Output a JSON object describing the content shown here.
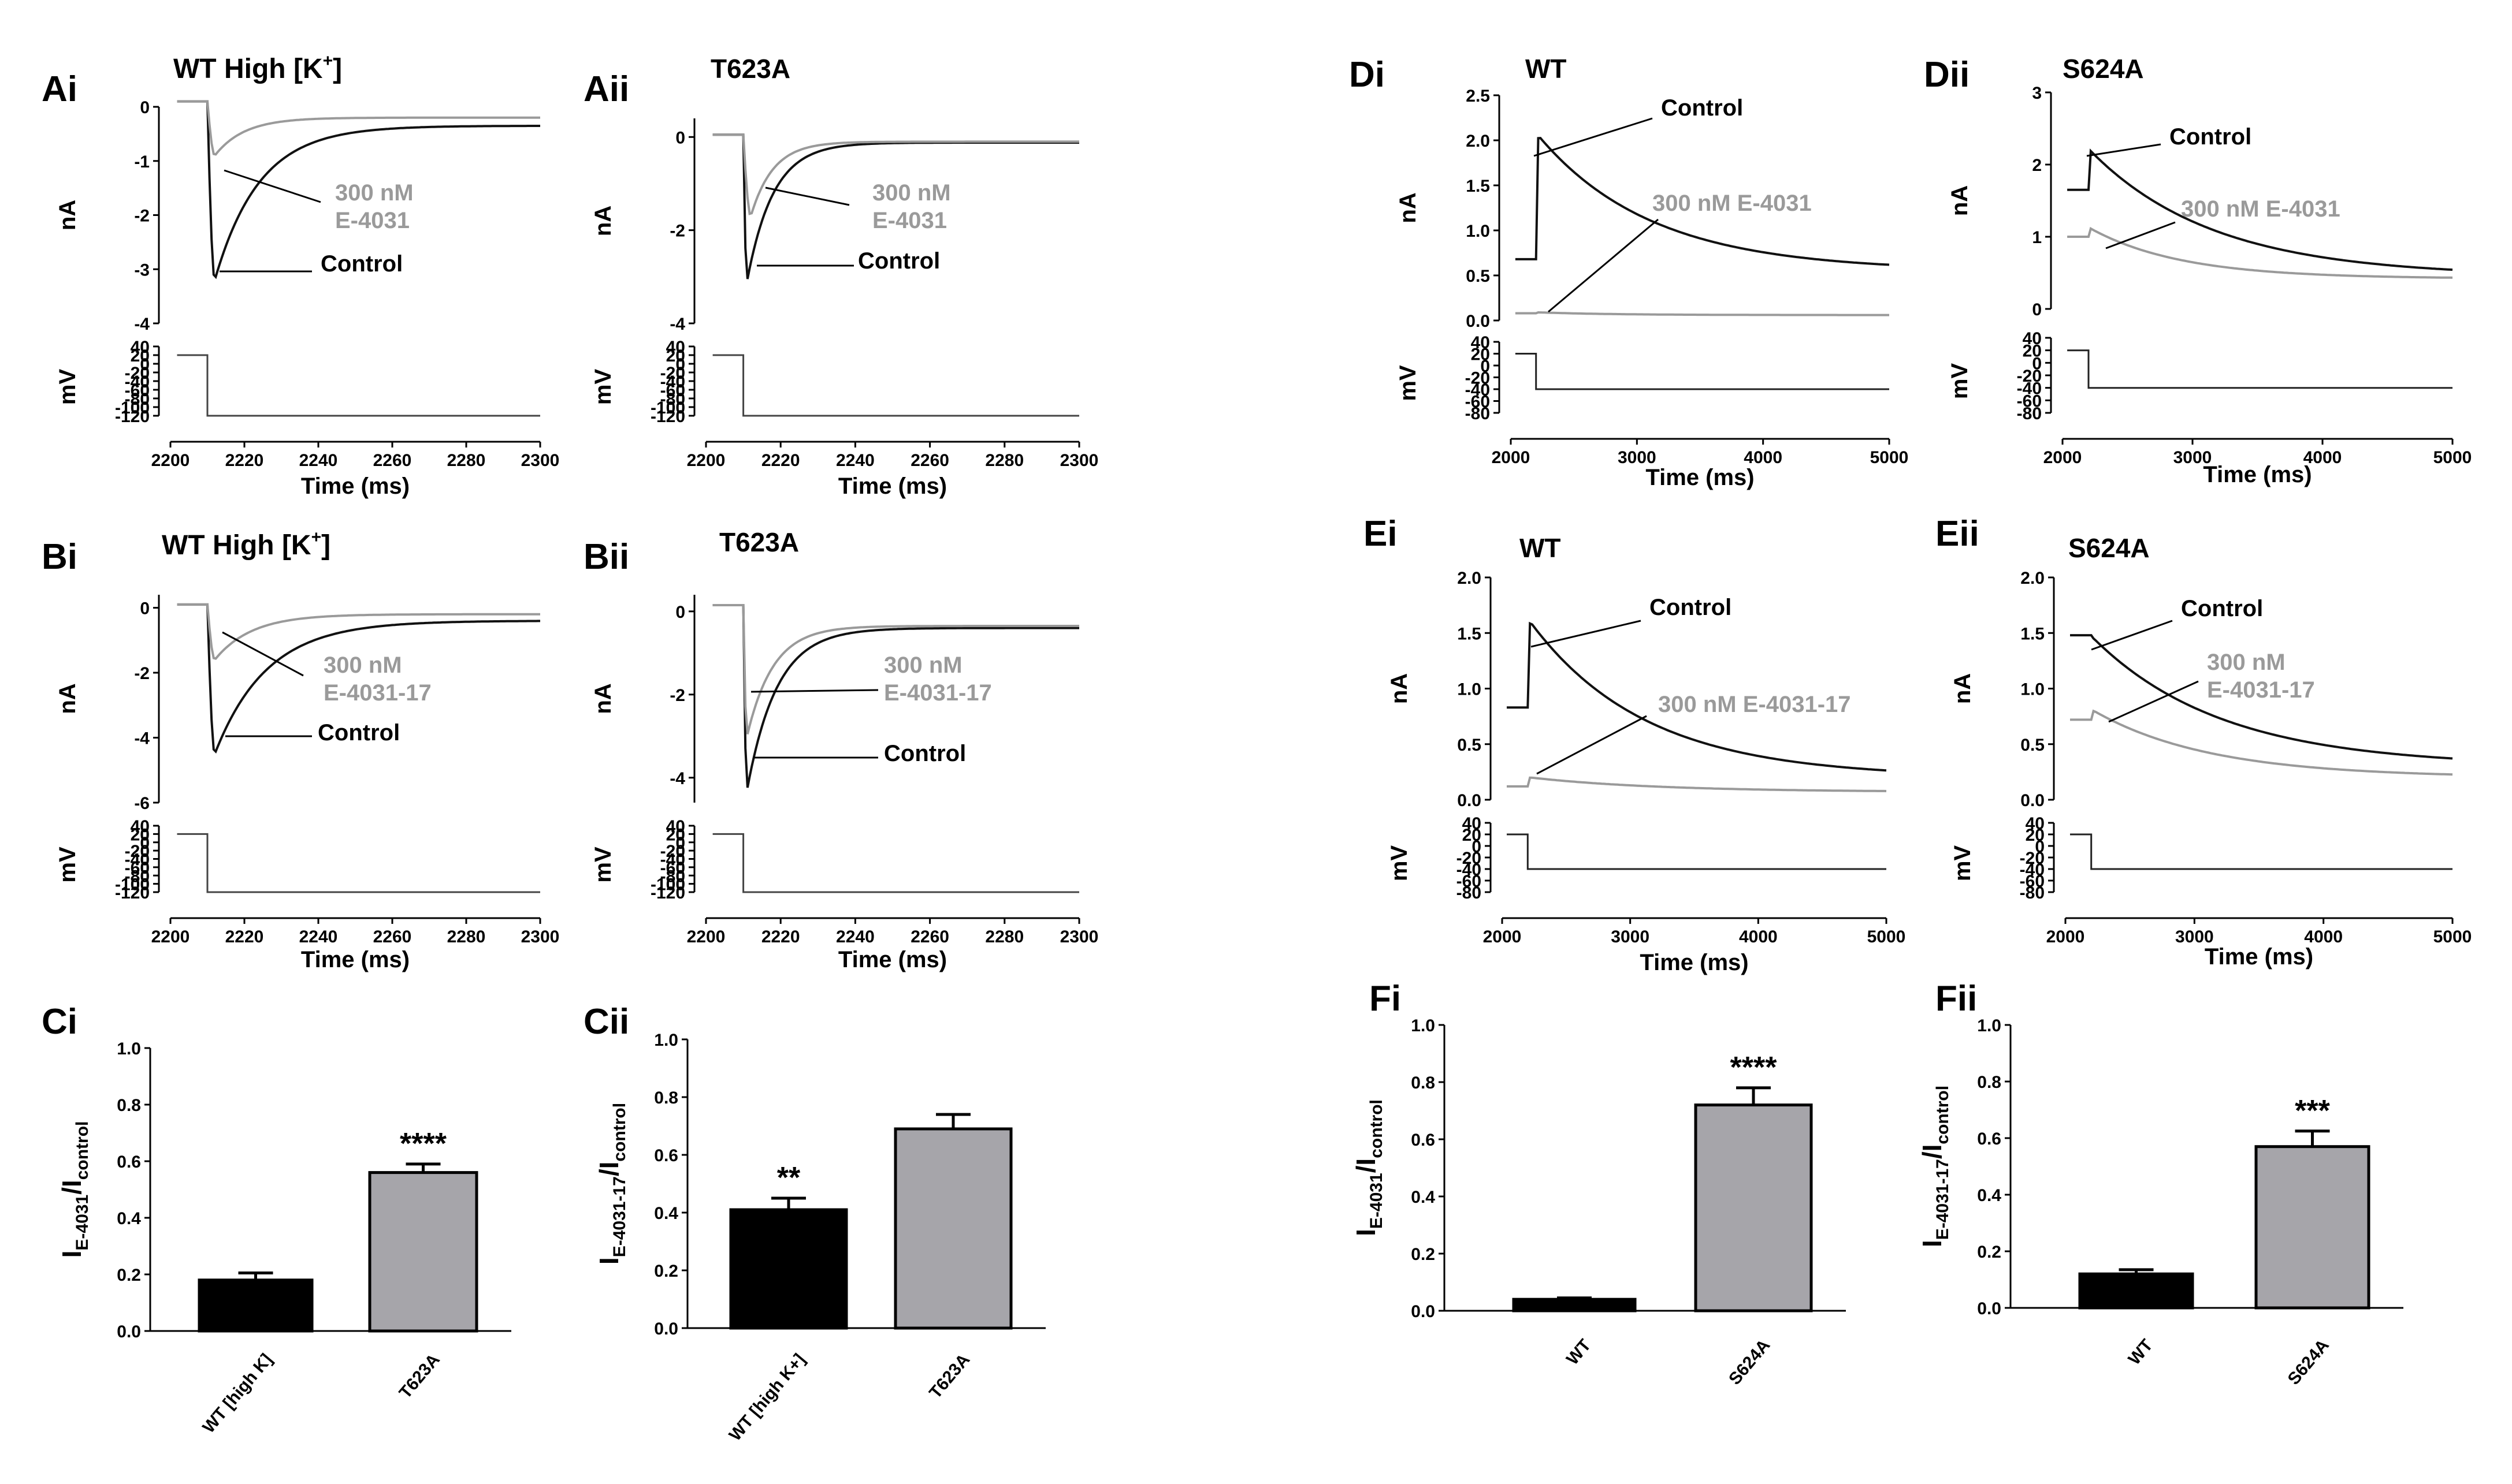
{
  "colors": {
    "control": "#111111",
    "drug": "#9a9a9a",
    "bar_wt": "#000000",
    "bar_mut": "#a6a5aa",
    "axis": "#000000"
  },
  "panels": {
    "Ai": {
      "label": "Ai",
      "title": "WT High [K",
      "title_sup": "+",
      "title_end": "]"
    },
    "Aii": {
      "label": "Aii",
      "title": "T623A"
    },
    "Bi": {
      "label": "Bi",
      "title": "WT High [K",
      "title_sup": "+",
      "title_end": "]"
    },
    "Bii": {
      "label": "Bii",
      "title": "T623A"
    },
    "Ci": {
      "label": "Ci"
    },
    "Cii": {
      "label": "Cii"
    },
    "Di": {
      "label": "Di",
      "title": "WT"
    },
    "Dii": {
      "label": "Dii",
      "title": "S624A"
    },
    "Ei": {
      "label": "Ei",
      "title": "WT"
    },
    "Eii": {
      "label": "Eii",
      "title": "S624A"
    },
    "Fi": {
      "label": "Fi"
    },
    "Fii": {
      "label": "Fii"
    }
  },
  "axis_labels": {
    "current": "nA",
    "voltage": "mV",
    "time": "Time (ms)"
  },
  "chart_data": [
    {
      "id": "Ai",
      "type": "line",
      "title": "WT High [K+]",
      "xlabel": "Time (ms)",
      "ylabel": "nA",
      "xlim": [
        2200,
        2300
      ],
      "xticks": [
        2200,
        2220,
        2240,
        2260,
        2280,
        2300
      ],
      "ylim": [
        -4,
        0
      ],
      "yticks": [
        0,
        -1,
        -2,
        -3,
        -4
      ],
      "series": [
        {
          "name": "Control",
          "hold": 0.1,
          "peak": -3.2,
          "tpeak": 2212,
          "tau": 12,
          "ss": -0.35
        },
        {
          "name": "300 nM E-4031",
          "hold": 0.1,
          "peak": -0.9,
          "tpeak": 2212,
          "tau": 8,
          "ss": -0.2
        }
      ],
      "annotations": {
        "control": "Control",
        "drug": [
          "300 nM",
          "E-4031"
        ]
      },
      "voltage": {
        "ylim": [
          -120,
          40
        ],
        "yticks": [
          40,
          20,
          0,
          -20,
          -40,
          -60,
          -80,
          -100,
          -120
        ],
        "hold": 20,
        "step": -120,
        "tstep": 2210
      }
    },
    {
      "id": "Aii",
      "type": "line",
      "title": "T623A",
      "xlabel": "Time (ms)",
      "ylabel": "nA",
      "xlim": [
        2200,
        2300
      ],
      "xticks": [
        2200,
        2220,
        2240,
        2260,
        2280,
        2300
      ],
      "ylim": [
        -4,
        0.4
      ],
      "yticks": [
        0,
        -2,
        -4
      ],
      "series": [
        {
          "name": "Control",
          "hold": 0.05,
          "peak": -3.1,
          "tpeak": 2211,
          "tau": 7,
          "ss": -0.12
        },
        {
          "name": "300 nM E-4031",
          "hold": 0.05,
          "peak": -1.7,
          "tpeak": 2212,
          "tau": 6,
          "ss": -0.1
        }
      ],
      "annotations": {
        "control": "Control",
        "drug": [
          "300 nM",
          "E-4031"
        ]
      },
      "voltage": {
        "ylim": [
          -120,
          40
        ],
        "yticks": [
          40,
          20,
          0,
          -20,
          -40,
          -60,
          -80,
          -100,
          -120
        ],
        "hold": 20,
        "step": -120,
        "tstep": 2210
      }
    },
    {
      "id": "Bi",
      "type": "line",
      "title": "WT High [K+]",
      "xlabel": "Time (ms)",
      "ylabel": "nA",
      "xlim": [
        2200,
        2300
      ],
      "xticks": [
        2200,
        2220,
        2240,
        2260,
        2280,
        2300
      ],
      "ylim": [
        -6,
        0.4
      ],
      "yticks": [
        0,
        -2,
        -4,
        -6
      ],
      "series": [
        {
          "name": "Control",
          "hold": 0.1,
          "peak": -4.5,
          "tpeak": 2212,
          "tau": 14,
          "ss": -0.4
        },
        {
          "name": "300 nM E-4031-17",
          "hold": 0.1,
          "peak": -1.6,
          "tpeak": 2212,
          "tau": 10,
          "ss": -0.2
        }
      ],
      "annotations": {
        "control": "Control",
        "drug": [
          "300 nM",
          "E-4031-17"
        ]
      },
      "voltage": {
        "ylim": [
          -120,
          40
        ],
        "yticks": [
          40,
          20,
          0,
          -20,
          -40,
          -60,
          -80,
          -100,
          -120
        ],
        "hold": 20,
        "step": -120,
        "tstep": 2210
      }
    },
    {
      "id": "Bii",
      "type": "line",
      "title": "T623A",
      "xlabel": "Time (ms)",
      "ylabel": "nA",
      "xlim": [
        2200,
        2300
      ],
      "xticks": [
        2200,
        2220,
        2240,
        2260,
        2280,
        2300
      ],
      "ylim": [
        -4.6,
        0.4
      ],
      "yticks": [
        0,
        -2,
        -4
      ],
      "series": [
        {
          "name": "Control",
          "hold": 0.15,
          "peak": -4.3,
          "tpeak": 2211,
          "tau": 8,
          "ss": -0.4
        },
        {
          "name": "300 nM E-4031-17",
          "hold": 0.15,
          "peak": -3.0,
          "tpeak": 2211,
          "tau": 7,
          "ss": -0.35
        }
      ],
      "annotations": {
        "control": "Control",
        "drug": [
          "300 nM",
          "E-4031-17"
        ]
      },
      "voltage": {
        "ylim": [
          -120,
          40
        ],
        "yticks": [
          40,
          20,
          0,
          -20,
          -40,
          -60,
          -80,
          -100,
          -120
        ],
        "hold": 20,
        "step": -120,
        "tstep": 2210
      }
    },
    {
      "id": "Di",
      "type": "line",
      "title": "WT",
      "xlabel": "Time (ms)",
      "ylabel": "nA",
      "xlim": [
        2000,
        5000
      ],
      "xticks": [
        2000,
        3000,
        4000,
        5000
      ],
      "ylim": [
        0,
        2.5
      ],
      "yticks": [
        0.0,
        0.5,
        1.0,
        1.5,
        2.0,
        2.5
      ],
      "series": [
        {
          "name": "Control",
          "hold": 0.68,
          "peak": 2.05,
          "tpeak": 2220,
          "tau": 900,
          "ss": 0.55
        },
        {
          "name": "300 nM E-4031",
          "hold": 0.08,
          "peak": 0.09,
          "tpeak": 2220,
          "tau": 600,
          "ss": 0.06
        }
      ],
      "annotations": {
        "control": "Control",
        "drug": [
          "300 nM E-4031"
        ]
      },
      "voltage": {
        "ylim": [
          -80,
          40
        ],
        "yticks": [
          40,
          20,
          0,
          -20,
          -40,
          -60,
          -80
        ],
        "hold": 20,
        "step": -40,
        "tstep": 2200
      }
    },
    {
      "id": "Dii",
      "type": "line",
      "title": "S624A",
      "xlabel": "Time (ms)",
      "ylabel": "nA",
      "xlim": [
        2000,
        5000
      ],
      "xticks": [
        2000,
        3000,
        4000,
        5000
      ],
      "ylim": [
        0,
        3
      ],
      "yticks": [
        0,
        1,
        2,
        3
      ],
      "series": [
        {
          "name": "Control",
          "hold": 1.65,
          "peak": 2.2,
          "tpeak": 2210,
          "tau": 950,
          "ss": 0.45
        },
        {
          "name": "300 nM E-4031",
          "hold": 1.0,
          "peak": 1.12,
          "tpeak": 2210,
          "tau": 700,
          "ss": 0.42
        }
      ],
      "annotations": {
        "control": "Control",
        "drug": [
          "300 nM E-4031"
        ]
      },
      "voltage": {
        "ylim": [
          -80,
          40
        ],
        "yticks": [
          40,
          20,
          0,
          -20,
          -40,
          -60,
          -80
        ],
        "hold": 20,
        "step": -40,
        "tstep": 2200
      }
    },
    {
      "id": "Ei",
      "type": "line",
      "title": "WT",
      "xlabel": "Time (ms)",
      "ylabel": "nA",
      "xlim": [
        2000,
        5000
      ],
      "xticks": [
        2000,
        3000,
        4000,
        5000
      ],
      "ylim": [
        0,
        2.0
      ],
      "yticks": [
        0.0,
        0.5,
        1.0,
        1.5,
        2.0
      ],
      "series": [
        {
          "name": "Control",
          "hold": 0.83,
          "peak": 1.6,
          "tpeak": 2220,
          "tau": 900,
          "ss": 0.2
        },
        {
          "name": "300 nM E-4031-17",
          "hold": 0.12,
          "peak": 0.2,
          "tpeak": 2220,
          "tau": 1000,
          "ss": 0.07
        }
      ],
      "annotations": {
        "control": "Control",
        "drug": [
          "300 nM E-4031-17"
        ]
      },
      "voltage": {
        "ylim": [
          -80,
          40
        ],
        "yticks": [
          40,
          20,
          0,
          -20,
          -40,
          -60,
          -80
        ],
        "hold": 20,
        "step": -40,
        "tstep": 2200
      }
    },
    {
      "id": "Eii",
      "type": "line",
      "title": "S624A",
      "xlabel": "Time (ms)",
      "ylabel": "nA",
      "xlim": [
        2000,
        5000
      ],
      "xticks": [
        2000,
        3000,
        4000,
        5000
      ],
      "ylim": [
        0,
        2.0
      ],
      "yticks": [
        0.0,
        0.5,
        1.0,
        1.5,
        2.0
      ],
      "series": [
        {
          "name": "Control",
          "hold": 1.48,
          "peak": 1.45,
          "tpeak": 2220,
          "tau": 1000,
          "ss": 0.3
        },
        {
          "name": "300 nM E-4031-17",
          "hold": 0.72,
          "peak": 0.8,
          "tpeak": 2220,
          "tau": 900,
          "ss": 0.2
        }
      ],
      "annotations": {
        "control": "Control",
        "drug": [
          "300 nM",
          "E-4031-17"
        ]
      },
      "voltage": {
        "ylim": [
          -80,
          40
        ],
        "yticks": [
          40,
          20,
          0,
          -20,
          -40,
          -60,
          -80
        ],
        "hold": 20,
        "step": -40,
        "tstep": 2200
      }
    },
    {
      "id": "Ci",
      "type": "bar",
      "ylabel": "I_E-4031/I_control",
      "ylim": [
        0,
        1.0
      ],
      "yticks": [
        0.0,
        0.2,
        0.4,
        0.6,
        0.8,
        1.0
      ],
      "categories": [
        "WT [high K]",
        "T623A"
      ],
      "values": [
        0.18,
        0.56
      ],
      "errors": [
        0.025,
        0.03
      ],
      "significance": [
        "",
        "****"
      ]
    },
    {
      "id": "Cii",
      "type": "bar",
      "ylabel": "I_E-4031-17/I_control",
      "ylim": [
        0,
        1.0
      ],
      "yticks": [
        0.0,
        0.2,
        0.4,
        0.6,
        0.8,
        1.0
      ],
      "categories": [
        "WT [high K+]",
        "T623A"
      ],
      "values": [
        0.41,
        0.69
      ],
      "errors": [
        0.04,
        0.05
      ],
      "significance": [
        "**",
        ""
      ]
    },
    {
      "id": "Fi",
      "type": "bar",
      "ylabel": "I_E-4031/I_control",
      "ylim": [
        0,
        1.0
      ],
      "yticks": [
        0.0,
        0.2,
        0.4,
        0.6,
        0.8,
        1.0
      ],
      "categories": [
        "WT",
        "S624A"
      ],
      "values": [
        0.04,
        0.72
      ],
      "errors": [
        0.005,
        0.06
      ],
      "significance": [
        "",
        "****"
      ]
    },
    {
      "id": "Fii",
      "type": "bar",
      "ylabel": "I_E-4031-17/I_control",
      "ylim": [
        0,
        1.0
      ],
      "yticks": [
        0.0,
        0.2,
        0.4,
        0.6,
        0.8,
        1.0
      ],
      "categories": [
        "WT",
        "S624A"
      ],
      "values": [
        0.12,
        0.57
      ],
      "errors": [
        0.015,
        0.055
      ],
      "significance": [
        "",
        "***"
      ]
    }
  ]
}
